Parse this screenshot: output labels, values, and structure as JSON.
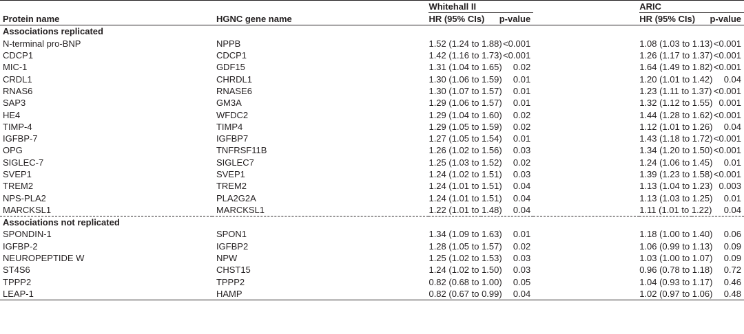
{
  "groups": {
    "whitehall": "Whitehall II",
    "aric": "ARIC"
  },
  "headers": {
    "protein": "Protein name",
    "gene": "HGNC gene name",
    "w_hr": "HR (95% CIs)",
    "w_p": "p-value",
    "a_hr": "HR (95% CIs)",
    "a_p": "p-value"
  },
  "sections": [
    {
      "title": "Associations replicated",
      "rows": [
        [
          "N-terminal pro-BNP",
          "NPPB",
          "1.52 (1.24 to 1.88)",
          "<0.001",
          "1.08 (1.03 to 1.13)",
          "<0.001"
        ],
        [
          "CDCP1",
          "CDCP1",
          "1.42 (1.16 to 1.73)",
          "<0.001",
          "1.26 (1.17 to 1.37)",
          "<0.001"
        ],
        [
          "MIC-1",
          "GDF15",
          "1.31 (1.04 to 1.65)",
          "0.02",
          "1.64 (1.49 to 1.82)",
          "<0.001"
        ],
        [
          "CRDL1",
          "CHRDL1",
          "1.30 (1.06 to 1.59)",
          "0.01",
          "1.20 (1.01 to 1.42)",
          "0.04"
        ],
        [
          "RNAS6",
          "RNASE6",
          "1.30 (1.07 to 1.57)",
          "0.01",
          "1.23 (1.11 to 1.37)",
          "<0.001"
        ],
        [
          "SAP3",
          "GM3A",
          "1.29 (1.06 to 1.57)",
          "0.01",
          "1.32 (1.12 to 1.55)",
          "0.001"
        ],
        [
          "HE4",
          "WFDC2",
          "1.29 (1.04 to 1.60)",
          "0.02",
          "1.44 (1.28 to 1.62)",
          "<0.001"
        ],
        [
          "TIMP-4",
          "TIMP4",
          "1.29 (1.05 to 1.59)",
          "0.02",
          "1.12 (1.01 to 1.26)",
          "0.04"
        ],
        [
          "IGFBP-7",
          "IGFBP7",
          "1.27 (1.05 to 1.54)",
          "0.01",
          "1.43 (1.18 to 1.72)",
          "<0.001"
        ],
        [
          "OPG",
          "TNFRSF11B",
          "1.26 (1.02 to 1.56)",
          "0.03",
          "1.34 (1.20 to 1.50)",
          "<0.001"
        ],
        [
          "SIGLEC-7",
          "SIGLEC7",
          "1.25 (1.03 to 1.52)",
          "0.02",
          "1.24 (1.06 to 1.45)",
          "0.01"
        ],
        [
          "SVEP1",
          "SVEP1",
          "1.24 (1.02 to 1.51)",
          "0.03",
          "1.39 (1.23 to 1.58)",
          "<0.001"
        ],
        [
          "TREM2",
          "TREM2",
          "1.24 (1.01 to 1.51)",
          "0.04",
          "1.13 (1.04 to 1.23)",
          "0.003"
        ],
        [
          "NPS-PLA2",
          "PLA2G2A",
          "1.24 (1.01 to 1.51)",
          "0.04",
          "1.13 (1.03 to 1.25)",
          "0.01"
        ],
        [
          "MARCKSL1",
          "MARCKSL1",
          "1.22 (1.01 to 1.48)",
          "0.04",
          "1.11 (1.01 to 1.22)",
          "0.04"
        ]
      ]
    },
    {
      "title": "Associations not replicated",
      "rows": [
        [
          "SPONDIN-1",
          "SPON1",
          "1.34 (1.09 to 1.63)",
          "0.01",
          "1.18 (1.00 to 1.40)",
          "0.06"
        ],
        [
          "IGFBP-2",
          "IGFBP2",
          "1.28 (1.05 to 1.57)",
          "0.02",
          "1.06 (0.99 to 1.13)",
          "0.09"
        ],
        [
          "NEUROPEPTIDE W",
          "NPW",
          "1.25 (1.02 to 1.53)",
          "0.03",
          "1.03 (1.00 to 1.07)",
          "0.09"
        ],
        [
          "ST4S6",
          "CHST15",
          "1.24 (1.02 to 1.50)",
          "0.03",
          "0.96 (0.78 to 1.18)",
          "0.72"
        ],
        [
          "TPPP2",
          "TPPP2",
          "0.82 (0.68 to 1.00)",
          "0.05",
          "1.04 (0.93 to 1.17)",
          "0.46"
        ],
        [
          "LEAP-1",
          "HAMP",
          "0.82 (0.67 to 0.99)",
          "0.04",
          "1.02 (0.97 to 1.06)",
          "0.48"
        ]
      ]
    }
  ]
}
